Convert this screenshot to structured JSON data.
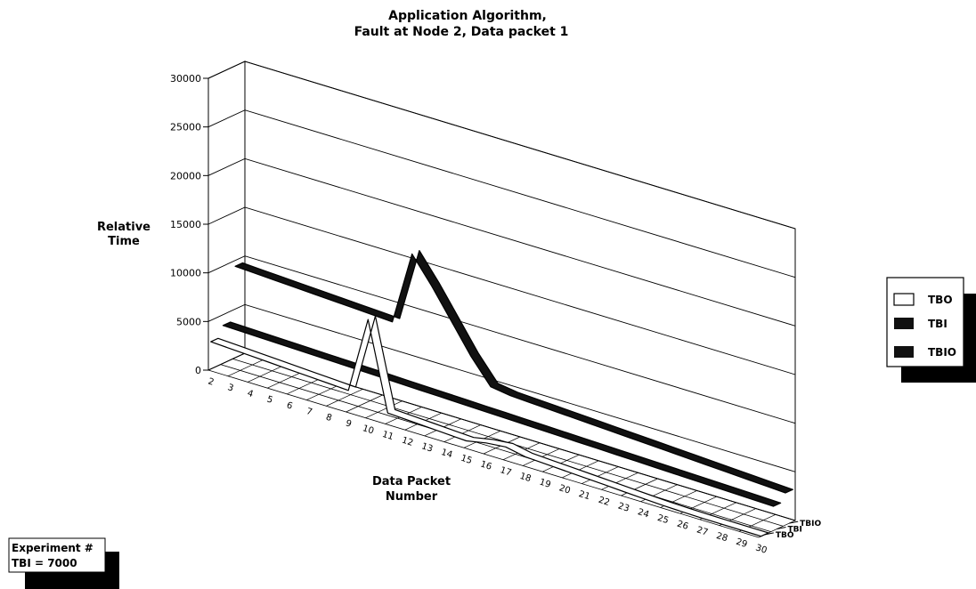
{
  "chart_data": {
    "type": "line",
    "style": "3d-ribbon",
    "title": [
      "Application Algorithm,",
      "Fault at Node 2, Data packet 1"
    ],
    "ylabel": [
      "Relative",
      "Time"
    ],
    "xlabel": [
      "Data Packet",
      "Number"
    ],
    "ylim": [
      0,
      30000
    ],
    "yticks": [
      0,
      5000,
      10000,
      15000,
      20000,
      25000,
      30000
    ],
    "categories": [
      "2",
      "3",
      "4",
      "5",
      "6",
      "7",
      "8",
      "9",
      "10",
      "11",
      "12",
      "13",
      "14",
      "15",
      "16",
      "17",
      "18",
      "19",
      "20",
      "21",
      "22",
      "23",
      "24",
      "25",
      "26",
      "27",
      "28",
      "29",
      "30"
    ],
    "series": [
      {
        "name": "TBO",
        "color": "#ffffff",
        "values": [
          2800,
          2700,
          2600,
          2500,
          2400,
          2300,
          2200,
          2100,
          10000,
          1000,
          900,
          800,
          700,
          600,
          1000,
          1200,
          800,
          700,
          600,
          500,
          400,
          300,
          200,
          100,
          50,
          20,
          10,
          5,
          0
        ]
      },
      {
        "name": "TBI",
        "color": "#111111",
        "values": [
          3900,
          3850,
          3800,
          3750,
          3700,
          3650,
          3600,
          3550,
          3500,
          3450,
          3400,
          3350,
          3300,
          3250,
          3200,
          3150,
          3100,
          3050,
          3000,
          2950,
          2900,
          2850,
          2800,
          2750,
          2700,
          2650,
          2600,
          2550,
          2500
        ]
      },
      {
        "name": "TBIO",
        "color": "#111111",
        "values": [
          9400,
          9300,
          9200,
          9100,
          9000,
          8900,
          8800,
          8700,
          8600,
          16200,
          13500,
          10500,
          7500,
          5000,
          4700,
          4600,
          4500,
          4400,
          4300,
          4200,
          4100,
          4000,
          3900,
          3800,
          3700,
          3600,
          3500,
          3400,
          3300
        ]
      }
    ],
    "series_axis_labels": [
      "TBIO",
      "TBI",
      "TBO"
    ],
    "grid": true,
    "legend": "right"
  },
  "note": {
    "line1": "Experiment #",
    "line2": "TBI = 7000"
  }
}
